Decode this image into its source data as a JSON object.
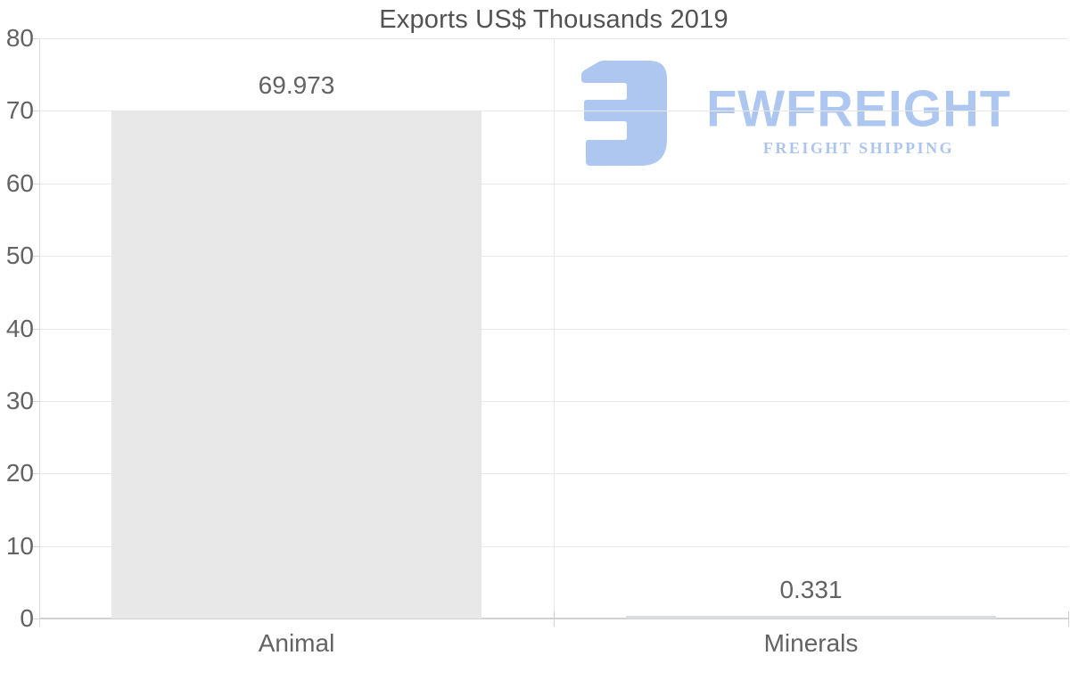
{
  "chart_data": {
    "type": "bar",
    "title": "Exports US$ Thousands 2019",
    "categories": [
      "Animal",
      "Minerals"
    ],
    "values": [
      69.973,
      0.331
    ],
    "value_labels": [
      "69.973",
      "0.331"
    ],
    "xlabel": "",
    "ylabel": "",
    "ylim": [
      0,
      80
    ],
    "yticks": [
      0,
      10,
      20,
      30,
      40,
      50,
      60,
      70,
      80
    ],
    "grid": true,
    "legend": "none",
    "bar_colors": [
      "#e8e8e8",
      "#d8dde3"
    ],
    "label_color": "#636365",
    "grid_color": "#e9e9e9",
    "axis_color": "#d2d2d2",
    "title_color": "#525254"
  },
  "logo": {
    "wordmark": "FWFREIGHT",
    "tagline": "FREIGHT SHIPPING",
    "color": "#a7c3f0"
  }
}
